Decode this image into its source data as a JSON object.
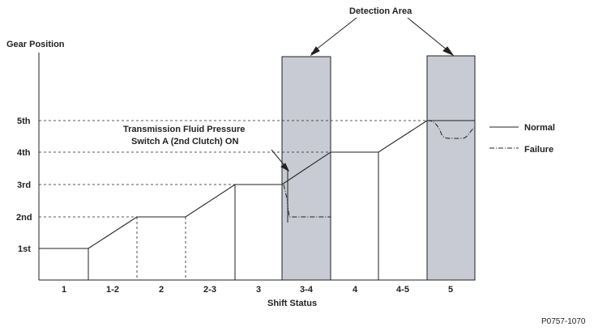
{
  "title": "",
  "y_axis_title": "Gear Position",
  "x_axis_title": "Shift Status",
  "detection_label": "Detection Area",
  "annotation": [
    "Transmission Fluid Pressure",
    "Switch A (2nd Clutch) ON"
  ],
  "legend": {
    "normal": "Normal",
    "failure": "Failure"
  },
  "figure_code": "P0757-1070",
  "gears": [
    "1st",
    "2nd",
    "3rd",
    "4th",
    "5th"
  ],
  "shift_status": [
    "1",
    "1-2",
    "2",
    "2-3",
    "3",
    "3-4",
    "4",
    "4-5",
    "5"
  ],
  "colors": {
    "detection_fill": "#c8cbd3",
    "line": "#222222"
  },
  "chart_data": {
    "type": "line",
    "xlabel": "Shift Status",
    "ylabel": "Gear Position",
    "categories": [
      "1",
      "1-2",
      "2",
      "2-3",
      "3",
      "3-4",
      "4",
      "4-5",
      "5"
    ],
    "y_ticks": [
      "1st",
      "2nd",
      "3rd",
      "4th",
      "5th"
    ],
    "series": [
      {
        "name": "Normal",
        "style": "solid",
        "x": [
          0,
          1,
          2,
          3,
          4,
          5,
          6,
          7,
          8,
          9
        ],
        "y": [
          1,
          1,
          2,
          2,
          3,
          3,
          4,
          4,
          5,
          5
        ]
      },
      {
        "name": "Failure",
        "style": "dash-dot",
        "segments": [
          {
            "x": [
              5,
              5.05,
              5.1,
              6
            ],
            "y": [
              3,
              3.5,
              2,
              2
            ]
          },
          {
            "x": [
              8,
              8.2,
              8.4,
              8.8,
              9
            ],
            "y": [
              5,
              4.9,
              4.4,
              4.4,
              4.7
            ]
          }
        ]
      }
    ],
    "detection_areas": [
      [
        "3-4"
      ],
      [
        "5"
      ]
    ],
    "ylim": [
      0,
      6
    ]
  }
}
